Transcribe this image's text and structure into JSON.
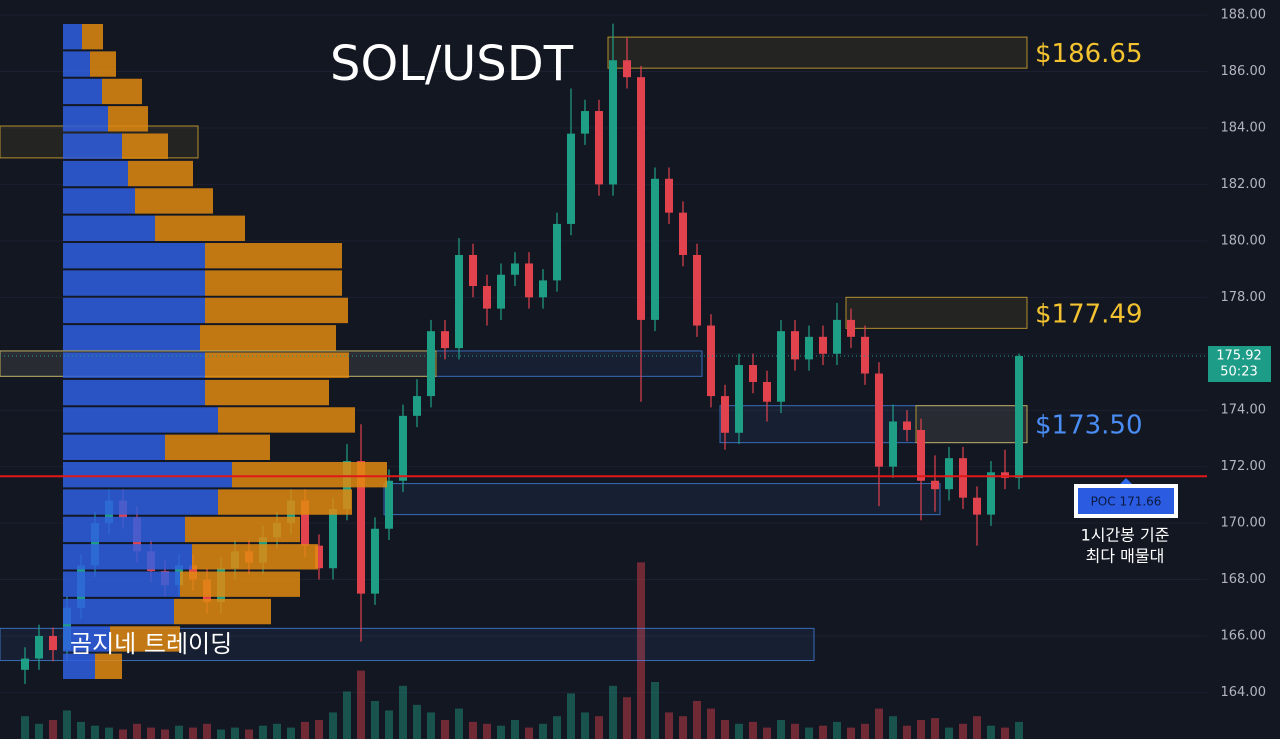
{
  "chart_data": {
    "type": "candlestick",
    "title": "SOL/USDT",
    "watermark": "곰지네 트레이딩",
    "annotation": [
      "1시간봉 기준",
      "최다 매물대"
    ],
    "up_color": "#1f9e86",
    "down_color": "#e0424e",
    "ylim": [
      164.44,
      187.72
    ],
    "yticks": [
      {
        "value": 164,
        "label": "164.00"
      },
      {
        "value": 166,
        "label": "166.00"
      },
      {
        "value": 168,
        "label": "168.00"
      },
      {
        "value": 170,
        "label": "170.00"
      },
      {
        "value": 172,
        "label": "172.00"
      },
      {
        "value": 174,
        "label": "174.00"
      },
      {
        "value": 176,
        "label": "176.00"
      },
      {
        "value": 178,
        "label": "178.00"
      },
      {
        "value": 180,
        "label": "180.00"
      },
      {
        "value": 182,
        "label": "182.00"
      },
      {
        "value": 184,
        "label": "184.00"
      },
      {
        "value": 186,
        "label": "186.00"
      },
      {
        "value": 188,
        "label": "188.00"
      }
    ],
    "grid": true,
    "open": [
      164.8,
      165.2,
      166.0,
      165.5,
      167.0,
      168.5,
      170.0,
      170.8,
      170.2,
      169.0,
      168.3,
      167.8,
      168.5,
      168.0,
      167.2,
      168.4,
      169.0,
      168.6,
      169.5,
      170.0,
      170.8,
      169.2,
      168.4,
      170.5,
      172.2,
      167.5,
      169.8,
      171.5,
      173.8,
      174.5,
      176.8,
      176.2,
      179.5,
      178.4,
      177.6,
      178.8,
      179.2,
      178.0,
      178.6,
      180.6,
      183.8,
      184.6,
      182.0,
      186.4,
      185.8,
      177.2,
      182.2,
      181.0,
      179.5,
      177.0,
      174.5,
      173.2,
      175.6,
      175.0,
      174.3,
      176.8,
      175.8,
      176.6,
      176.0,
      177.2,
      176.6,
      175.3,
      172.0,
      173.6,
      173.3,
      171.5,
      171.2,
      172.3,
      170.9,
      170.3,
      171.8,
      171.6
    ],
    "high": [
      165.6,
      166.4,
      166.3,
      167.4,
      168.9,
      170.4,
      171.2,
      171.2,
      170.6,
      169.4,
      168.7,
      168.9,
      168.9,
      168.4,
      168.8,
      169.4,
      169.4,
      169.9,
      170.4,
      171.2,
      171.2,
      169.6,
      170.9,
      172.8,
      173.5,
      170.2,
      171.9,
      174.2,
      175.1,
      177.2,
      177.2,
      180.1,
      179.9,
      178.8,
      179.2,
      179.6,
      179.6,
      179.0,
      181.0,
      185.4,
      185.0,
      185.0,
      187.7,
      187.2,
      186.2,
      182.6,
      182.6,
      181.4,
      179.9,
      177.4,
      174.9,
      176.0,
      176.0,
      175.4,
      177.2,
      177.2,
      177.0,
      177.0,
      177.8,
      177.6,
      177.0,
      175.7,
      174.2,
      174.0,
      173.7,
      172.4,
      172.7,
      172.7,
      171.3,
      172.2,
      172.6,
      176.0
    ],
    "low": [
      164.3,
      164.8,
      165.1,
      165.1,
      166.6,
      168.1,
      169.6,
      169.8,
      168.6,
      167.9,
      167.4,
      167.4,
      167.6,
      166.8,
      166.8,
      168.0,
      168.2,
      168.2,
      169.1,
      169.6,
      168.8,
      168.0,
      168.0,
      170.1,
      165.8,
      167.1,
      169.4,
      171.1,
      173.4,
      174.1,
      175.8,
      175.8,
      178.0,
      177.0,
      177.2,
      178.4,
      177.6,
      177.6,
      178.2,
      180.2,
      183.4,
      181.6,
      181.6,
      185.4,
      174.3,
      176.8,
      180.6,
      179.1,
      176.6,
      174.1,
      172.6,
      172.8,
      174.6,
      173.6,
      173.9,
      175.4,
      175.4,
      175.6,
      175.6,
      176.2,
      174.9,
      170.6,
      171.6,
      172.9,
      170.1,
      170.4,
      170.8,
      170.5,
      169.2,
      169.9,
      171.2,
      171.2
    ],
    "close": [
      165.2,
      166.0,
      165.5,
      167.0,
      168.5,
      170.0,
      170.8,
      170.2,
      169.0,
      168.3,
      167.8,
      168.5,
      168.0,
      167.2,
      168.4,
      169.0,
      168.6,
      169.5,
      170.0,
      170.8,
      169.2,
      168.4,
      170.5,
      172.2,
      167.5,
      169.8,
      171.5,
      173.8,
      174.5,
      176.8,
      176.2,
      179.5,
      178.4,
      177.6,
      178.8,
      179.2,
      178.0,
      178.6,
      180.6,
      183.8,
      184.6,
      182.0,
      186.4,
      185.8,
      177.2,
      182.2,
      181.0,
      179.5,
      177.0,
      174.5,
      173.2,
      175.6,
      175.0,
      174.3,
      176.8,
      175.8,
      176.6,
      176.0,
      177.2,
      176.6,
      175.3,
      172.0,
      173.6,
      173.3,
      171.5,
      171.2,
      172.3,
      170.9,
      170.3,
      171.8,
      171.6,
      175.92
    ],
    "volume": [
      12,
      8,
      10,
      15,
      9,
      7,
      6,
      5,
      8,
      6,
      5,
      7,
      6,
      8,
      5,
      6,
      5,
      7,
      8,
      6,
      9,
      10,
      14,
      25,
      36,
      20,
      15,
      28,
      18,
      14,
      10,
      16,
      9,
      8,
      7,
      10,
      6,
      8,
      12,
      24,
      14,
      12,
      28,
      22,
      93,
      30,
      14,
      12,
      20,
      16,
      10,
      8,
      9,
      6,
      10,
      8,
      6,
      7,
      9,
      6,
      8,
      16,
      12,
      7,
      10,
      11,
      6,
      8,
      12,
      7,
      6,
      9
    ],
    "volume_profile": {
      "bins": [
        187.72,
        186.75,
        185.78,
        184.81,
        183.84,
        182.87,
        181.9,
        180.93,
        179.96,
        178.99,
        178.02,
        177.05,
        176.08,
        175.11,
        174.14,
        173.17,
        172.2,
        171.23,
        170.26,
        169.29,
        168.32,
        167.35,
        166.38,
        165.41,
        164.44
      ],
      "buy": [
        19,
        27,
        39,
        45,
        59,
        65,
        72,
        92,
        142,
        142,
        142,
        137,
        142,
        142,
        155,
        102,
        169,
        155,
        122,
        129,
        117,
        111,
        47,
        32
      ],
      "sell": [
        21,
        26,
        40,
        40,
        46,
        65,
        78,
        90,
        137,
        137,
        143,
        136,
        144,
        124,
        137,
        105,
        155,
        134,
        115,
        126,
        120,
        97,
        70,
        27
      ],
      "buy_color": "#2f5fe0",
      "sell_color": "#e08a10"
    },
    "zones": [
      {
        "label": "$186.65",
        "high": 187.22,
        "low": 186.12,
        "start": 42,
        "end": null,
        "color": "#f2c230"
      },
      {
        "label": "$177.49",
        "high": 178.0,
        "low": 176.9,
        "start": 59,
        "end": null,
        "color": "#f2c230"
      },
      {
        "label": "$173.50",
        "high": 174.16,
        "low": 172.85,
        "start": 50,
        "end": null,
        "color": "#4a8df5"
      },
      {
        "high": 174.16,
        "low": 172.85,
        "start": 64,
        "end": null,
        "color": "#f2c230"
      },
      {
        "high": 176.1,
        "low": 175.2,
        "start": null,
        "end": 48,
        "color": "#4a8df5"
      },
      {
        "high": 176.1,
        "low": 175.2,
        "start": null,
        "end": 29,
        "color": "#f2c230"
      },
      {
        "high": 184.07,
        "low": 182.94,
        "start": null,
        "end": 12,
        "color": "#f2c230"
      },
      {
        "high": 171.4,
        "low": 170.3,
        "start": 26,
        "end": 65,
        "color": "#4a8df5"
      },
      {
        "high": 166.27,
        "low": 165.13,
        "start": null,
        "end": 56,
        "color": "#4a8df5"
      }
    ],
    "poc": {
      "label": "POC  171.66",
      "value": 171.66
    },
    "last_price": 175.92,
    "countdown": "50:23"
  }
}
